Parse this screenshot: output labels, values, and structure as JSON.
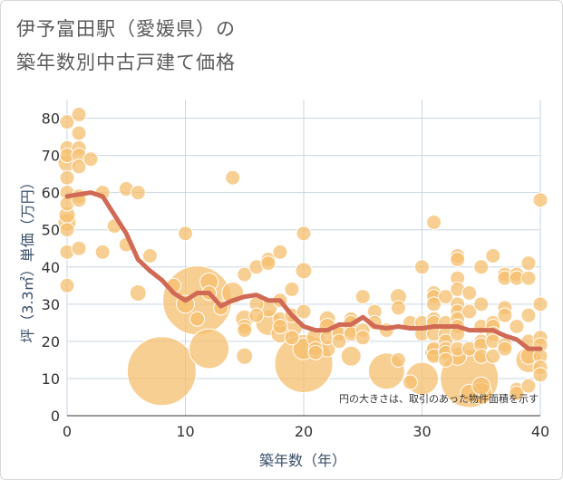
{
  "chart_data": {
    "type": "scatter",
    "title_line1": "伊予富田駅（愛媛県）の",
    "title_line2": "築年数別中古戸建て価格",
    "xlabel": "築年数（年）",
    "ylabel": "坪（3.3㎡）単価（万円）",
    "note": "円の大きさは、取引のあった物件面積を示す",
    "xlim": [
      0,
      40
    ],
    "ylim": [
      0,
      85
    ],
    "xticks": [
      "0",
      "10",
      "20",
      "30",
      "40"
    ],
    "yticks": [
      "0",
      "10",
      "20",
      "30",
      "40",
      "50",
      "60",
      "70",
      "80"
    ],
    "grid": true,
    "bubble_color": "#f5bf6e",
    "line_color": "#d06a55",
    "points": [
      {
        "x": 0,
        "y": 79,
        "s": 8
      },
      {
        "x": 0,
        "y": 72,
        "s": 8
      },
      {
        "x": 0,
        "y": 70,
        "s": 8
      },
      {
        "x": 0,
        "y": 68,
        "s": 10
      },
      {
        "x": 0,
        "y": 64,
        "s": 8
      },
      {
        "x": 0,
        "y": 60,
        "s": 8
      },
      {
        "x": 0,
        "y": 57,
        "s": 8
      },
      {
        "x": 0,
        "y": 54,
        "s": 9
      },
      {
        "x": 0,
        "y": 52,
        "s": 10
      },
      {
        "x": 0,
        "y": 50,
        "s": 8
      },
      {
        "x": 0,
        "y": 44,
        "s": 8
      },
      {
        "x": 0,
        "y": 35,
        "s": 8
      },
      {
        "x": 1,
        "y": 81,
        "s": 8
      },
      {
        "x": 1,
        "y": 76,
        "s": 8
      },
      {
        "x": 1,
        "y": 72,
        "s": 8
      },
      {
        "x": 1,
        "y": 70,
        "s": 8
      },
      {
        "x": 1,
        "y": 67,
        "s": 8
      },
      {
        "x": 1,
        "y": 59,
        "s": 8
      },
      {
        "x": 1,
        "y": 58,
        "s": 8
      },
      {
        "x": 1,
        "y": 45,
        "s": 8
      },
      {
        "x": 2,
        "y": 69,
        "s": 8
      },
      {
        "x": 3,
        "y": 60,
        "s": 8
      },
      {
        "x": 3,
        "y": 44,
        "s": 8
      },
      {
        "x": 4,
        "y": 51,
        "s": 8
      },
      {
        "x": 5,
        "y": 61,
        "s": 8
      },
      {
        "x": 5,
        "y": 46,
        "s": 8
      },
      {
        "x": 6,
        "y": 60,
        "s": 8
      },
      {
        "x": 6,
        "y": 33,
        "s": 9
      },
      {
        "x": 7,
        "y": 43,
        "s": 8
      },
      {
        "x": 8,
        "y": 12,
        "s": 38
      },
      {
        "x": 9,
        "y": 35,
        "s": 8
      },
      {
        "x": 10,
        "y": 49,
        "s": 8
      },
      {
        "x": 10,
        "y": 30,
        "s": 10
      },
      {
        "x": 11,
        "y": 31,
        "s": 38
      },
      {
        "x": 11,
        "y": 26,
        "s": 8
      },
      {
        "x": 12,
        "y": 18,
        "s": 22
      },
      {
        "x": 12,
        "y": 36,
        "s": 10
      },
      {
        "x": 12,
        "y": 33,
        "s": 8
      },
      {
        "x": 13,
        "y": 29,
        "s": 8
      },
      {
        "x": 14,
        "y": 64,
        "s": 8
      },
      {
        "x": 14,
        "y": 33,
        "s": 12
      },
      {
        "x": 15,
        "y": 38,
        "s": 8
      },
      {
        "x": 15,
        "y": 26,
        "s": 10
      },
      {
        "x": 15,
        "y": 24,
        "s": 8
      },
      {
        "x": 15,
        "y": 23,
        "s": 8
      },
      {
        "x": 15,
        "y": 16,
        "s": 9
      },
      {
        "x": 16,
        "y": 40,
        "s": 8
      },
      {
        "x": 16,
        "y": 30,
        "s": 8
      },
      {
        "x": 16,
        "y": 27,
        "s": 8
      },
      {
        "x": 17,
        "y": 42,
        "s": 8
      },
      {
        "x": 17,
        "y": 41,
        "s": 8
      },
      {
        "x": 17,
        "y": 29,
        "s": 10
      },
      {
        "x": 17,
        "y": 25,
        "s": 14
      },
      {
        "x": 18,
        "y": 44,
        "s": 8
      },
      {
        "x": 18,
        "y": 31,
        "s": 8
      },
      {
        "x": 18,
        "y": 26,
        "s": 8
      },
      {
        "x": 18,
        "y": 24,
        "s": 8
      },
      {
        "x": 18,
        "y": 22,
        "s": 10
      },
      {
        "x": 19,
        "y": 34,
        "s": 8
      },
      {
        "x": 19,
        "y": 27,
        "s": 8
      },
      {
        "x": 19,
        "y": 24,
        "s": 12
      },
      {
        "x": 19,
        "y": 21,
        "s": 8
      },
      {
        "x": 20,
        "y": 49,
        "s": 8
      },
      {
        "x": 20,
        "y": 39,
        "s": 9
      },
      {
        "x": 20,
        "y": 28,
        "s": 8
      },
      {
        "x": 20,
        "y": 18,
        "s": 12
      },
      {
        "x": 20,
        "y": 14,
        "s": 32
      },
      {
        "x": 21,
        "y": 21,
        "s": 10
      },
      {
        "x": 21,
        "y": 18,
        "s": 8
      },
      {
        "x": 21,
        "y": 17,
        "s": 8
      },
      {
        "x": 22,
        "y": 26,
        "s": 9
      },
      {
        "x": 22,
        "y": 24,
        "s": 9
      },
      {
        "x": 22,
        "y": 21,
        "s": 8
      },
      {
        "x": 22,
        "y": 18,
        "s": 9
      },
      {
        "x": 23,
        "y": 23,
        "s": 8
      },
      {
        "x": 23,
        "y": 22,
        "s": 8
      },
      {
        "x": 23,
        "y": 20,
        "s": 8
      },
      {
        "x": 24,
        "y": 26,
        "s": 8
      },
      {
        "x": 24,
        "y": 25,
        "s": 8
      },
      {
        "x": 24,
        "y": 23,
        "s": 8
      },
      {
        "x": 24,
        "y": 22,
        "s": 8
      },
      {
        "x": 24,
        "y": 16,
        "s": 11
      },
      {
        "x": 25,
        "y": 32,
        "s": 8
      },
      {
        "x": 25,
        "y": 23,
        "s": 8
      },
      {
        "x": 25,
        "y": 21,
        "s": 8
      },
      {
        "x": 26,
        "y": 28,
        "s": 8
      },
      {
        "x": 26,
        "y": 25,
        "s": 8
      },
      {
        "x": 27,
        "y": 23,
        "s": 8
      },
      {
        "x": 27,
        "y": 12,
        "s": 20
      },
      {
        "x": 28,
        "y": 32,
        "s": 9
      },
      {
        "x": 28,
        "y": 29,
        "s": 8
      },
      {
        "x": 28,
        "y": 15,
        "s": 8
      },
      {
        "x": 29,
        "y": 25,
        "s": 8
      },
      {
        "x": 29,
        "y": 9,
        "s": 8
      },
      {
        "x": 30,
        "y": 40,
        "s": 8
      },
      {
        "x": 30,
        "y": 25,
        "s": 8
      },
      {
        "x": 30,
        "y": 22,
        "s": 8
      },
      {
        "x": 30,
        "y": 10,
        "s": 18
      },
      {
        "x": 31,
        "y": 52,
        "s": 8
      },
      {
        "x": 31,
        "y": 33,
        "s": 8
      },
      {
        "x": 31,
        "y": 32,
        "s": 8
      },
      {
        "x": 31,
        "y": 30,
        "s": 8
      },
      {
        "x": 31,
        "y": 26,
        "s": 8
      },
      {
        "x": 31,
        "y": 25,
        "s": 8
      },
      {
        "x": 31,
        "y": 22,
        "s": 8
      },
      {
        "x": 31,
        "y": 18,
        "s": 8
      },
      {
        "x": 31,
        "y": 17,
        "s": 10
      },
      {
        "x": 31,
        "y": 16,
        "s": 8
      },
      {
        "x": 32,
        "y": 32,
        "s": 8
      },
      {
        "x": 32,
        "y": 25,
        "s": 8
      },
      {
        "x": 32,
        "y": 22,
        "s": 8
      },
      {
        "x": 32,
        "y": 20,
        "s": 8
      },
      {
        "x": 32,
        "y": 18,
        "s": 8
      },
      {
        "x": 32,
        "y": 17,
        "s": 8
      },
      {
        "x": 32,
        "y": 15,
        "s": 8
      },
      {
        "x": 33,
        "y": 43,
        "s": 8
      },
      {
        "x": 33,
        "y": 42,
        "s": 8
      },
      {
        "x": 33,
        "y": 37,
        "s": 8
      },
      {
        "x": 33,
        "y": 34,
        "s": 8
      },
      {
        "x": 33,
        "y": 30,
        "s": 8
      },
      {
        "x": 33,
        "y": 28,
        "s": 8
      },
      {
        "x": 33,
        "y": 26,
        "s": 8
      },
      {
        "x": 33,
        "y": 24,
        "s": 8
      },
      {
        "x": 33,
        "y": 22,
        "s": 8
      },
      {
        "x": 33,
        "y": 18,
        "s": 8
      },
      {
        "x": 33,
        "y": 16,
        "s": 10
      },
      {
        "x": 34,
        "y": 33,
        "s": 8
      },
      {
        "x": 34,
        "y": 28,
        "s": 8
      },
      {
        "x": 34,
        "y": 18,
        "s": 8
      },
      {
        "x": 34,
        "y": 10,
        "s": 32
      },
      {
        "x": 34,
        "y": 6,
        "s": 10
      },
      {
        "x": 35,
        "y": 40,
        "s": 8
      },
      {
        "x": 35,
        "y": 30,
        "s": 8
      },
      {
        "x": 35,
        "y": 24,
        "s": 8
      },
      {
        "x": 35,
        "y": 20,
        "s": 8
      },
      {
        "x": 35,
        "y": 19,
        "s": 8
      },
      {
        "x": 35,
        "y": 16,
        "s": 8
      },
      {
        "x": 35,
        "y": 8,
        "s": 10
      },
      {
        "x": 35,
        "y": 6,
        "s": 12
      },
      {
        "x": 36,
        "y": 43,
        "s": 8
      },
      {
        "x": 36,
        "y": 25,
        "s": 8
      },
      {
        "x": 36,
        "y": 24,
        "s": 8
      },
      {
        "x": 36,
        "y": 22,
        "s": 8
      },
      {
        "x": 36,
        "y": 20,
        "s": 8
      },
      {
        "x": 36,
        "y": 16,
        "s": 8
      },
      {
        "x": 37,
        "y": 38,
        "s": 8
      },
      {
        "x": 37,
        "y": 37,
        "s": 8
      },
      {
        "x": 37,
        "y": 29,
        "s": 8
      },
      {
        "x": 37,
        "y": 27,
        "s": 8
      },
      {
        "x": 37,
        "y": 19,
        "s": 8
      },
      {
        "x": 37,
        "y": 18,
        "s": 8
      },
      {
        "x": 38,
        "y": 38,
        "s": 8
      },
      {
        "x": 38,
        "y": 37,
        "s": 8
      },
      {
        "x": 38,
        "y": 24,
        "s": 8
      },
      {
        "x": 38,
        "y": 7,
        "s": 8
      },
      {
        "x": 38,
        "y": 6,
        "s": 8
      },
      {
        "x": 39,
        "y": 41,
        "s": 8
      },
      {
        "x": 39,
        "y": 37,
        "s": 8
      },
      {
        "x": 39,
        "y": 27,
        "s": 8
      },
      {
        "x": 39,
        "y": 20,
        "s": 8
      },
      {
        "x": 39,
        "y": 16,
        "s": 9
      },
      {
        "x": 39,
        "y": 15,
        "s": 14
      },
      {
        "x": 39,
        "y": 8,
        "s": 8
      },
      {
        "x": 40,
        "y": 58,
        "s": 8
      },
      {
        "x": 40,
        "y": 30,
        "s": 8
      },
      {
        "x": 40,
        "y": 21,
        "s": 8
      },
      {
        "x": 40,
        "y": 19,
        "s": 8
      },
      {
        "x": 40,
        "y": 16,
        "s": 8
      },
      {
        "x": 40,
        "y": 13,
        "s": 8
      },
      {
        "x": 40,
        "y": 11,
        "s": 8
      }
    ],
    "trend": {
      "x": [
        0,
        1,
        2,
        3,
        4,
        5,
        6,
        7,
        8,
        9,
        10,
        11,
        12,
        13,
        14,
        15,
        16,
        17,
        18,
        19,
        20,
        21,
        22,
        23,
        24,
        25,
        26,
        27,
        28,
        29,
        30,
        31,
        32,
        33,
        34,
        35,
        36,
        37,
        38,
        39,
        40
      ],
      "y": [
        59,
        59.5,
        60,
        59,
        54,
        49,
        42,
        39,
        36.5,
        33,
        31,
        33,
        33,
        29.5,
        31,
        32,
        32.5,
        31,
        31,
        27,
        24,
        23,
        23,
        24.5,
        24.5,
        26.5,
        24,
        23.5,
        24,
        23.5,
        23.5,
        24,
        24,
        24,
        23,
        23,
        23,
        21.5,
        20.5,
        18,
        18
      ]
    }
  }
}
